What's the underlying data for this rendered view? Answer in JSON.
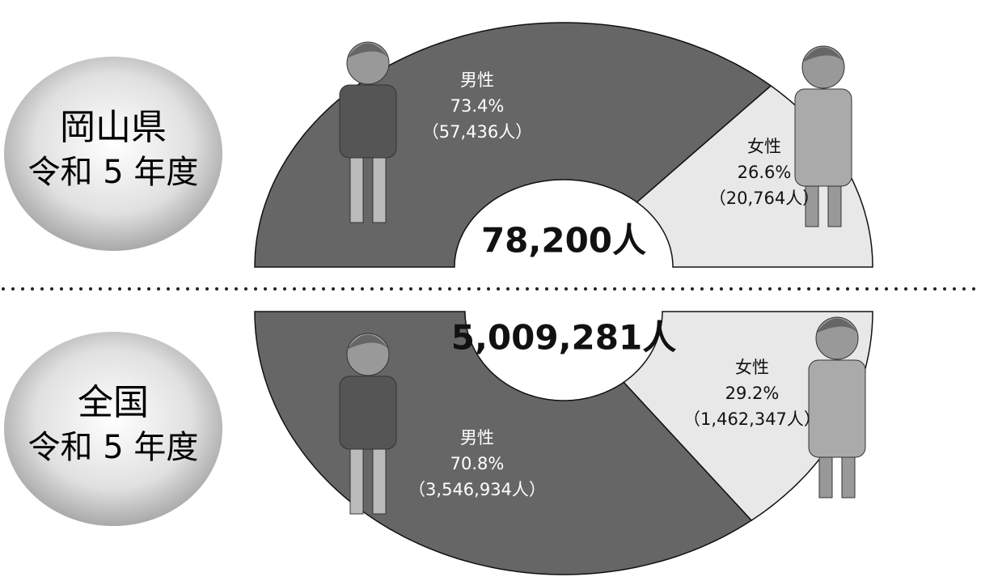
{
  "chart_data": [
    {
      "type": "donut",
      "orientation": "upper",
      "title": "岡山県",
      "subtitle": "令和 5 年度",
      "total_label": "78,200人",
      "categories": [
        "男性",
        "女性"
      ],
      "values": [
        73.4,
        26.6
      ],
      "value_labels": [
        "73.4%",
        "26.6%"
      ],
      "count_labels": [
        "（57,436人）",
        "（20,764人）"
      ],
      "colors": [
        "#666666",
        "#e8e8e8"
      ]
    },
    {
      "type": "donut",
      "orientation": "lower",
      "title": "全国",
      "subtitle": "令和 5 年度",
      "total_label": "5,009,281人",
      "categories": [
        "男性",
        "女性"
      ],
      "values": [
        70.8,
        29.2
      ],
      "value_labels": [
        "70.8%",
        "29.2%"
      ],
      "count_labels": [
        "（3,546,934人）",
        "（1,462,347人）"
      ],
      "colors": [
        "#666666",
        "#e8e8e8"
      ]
    }
  ]
}
